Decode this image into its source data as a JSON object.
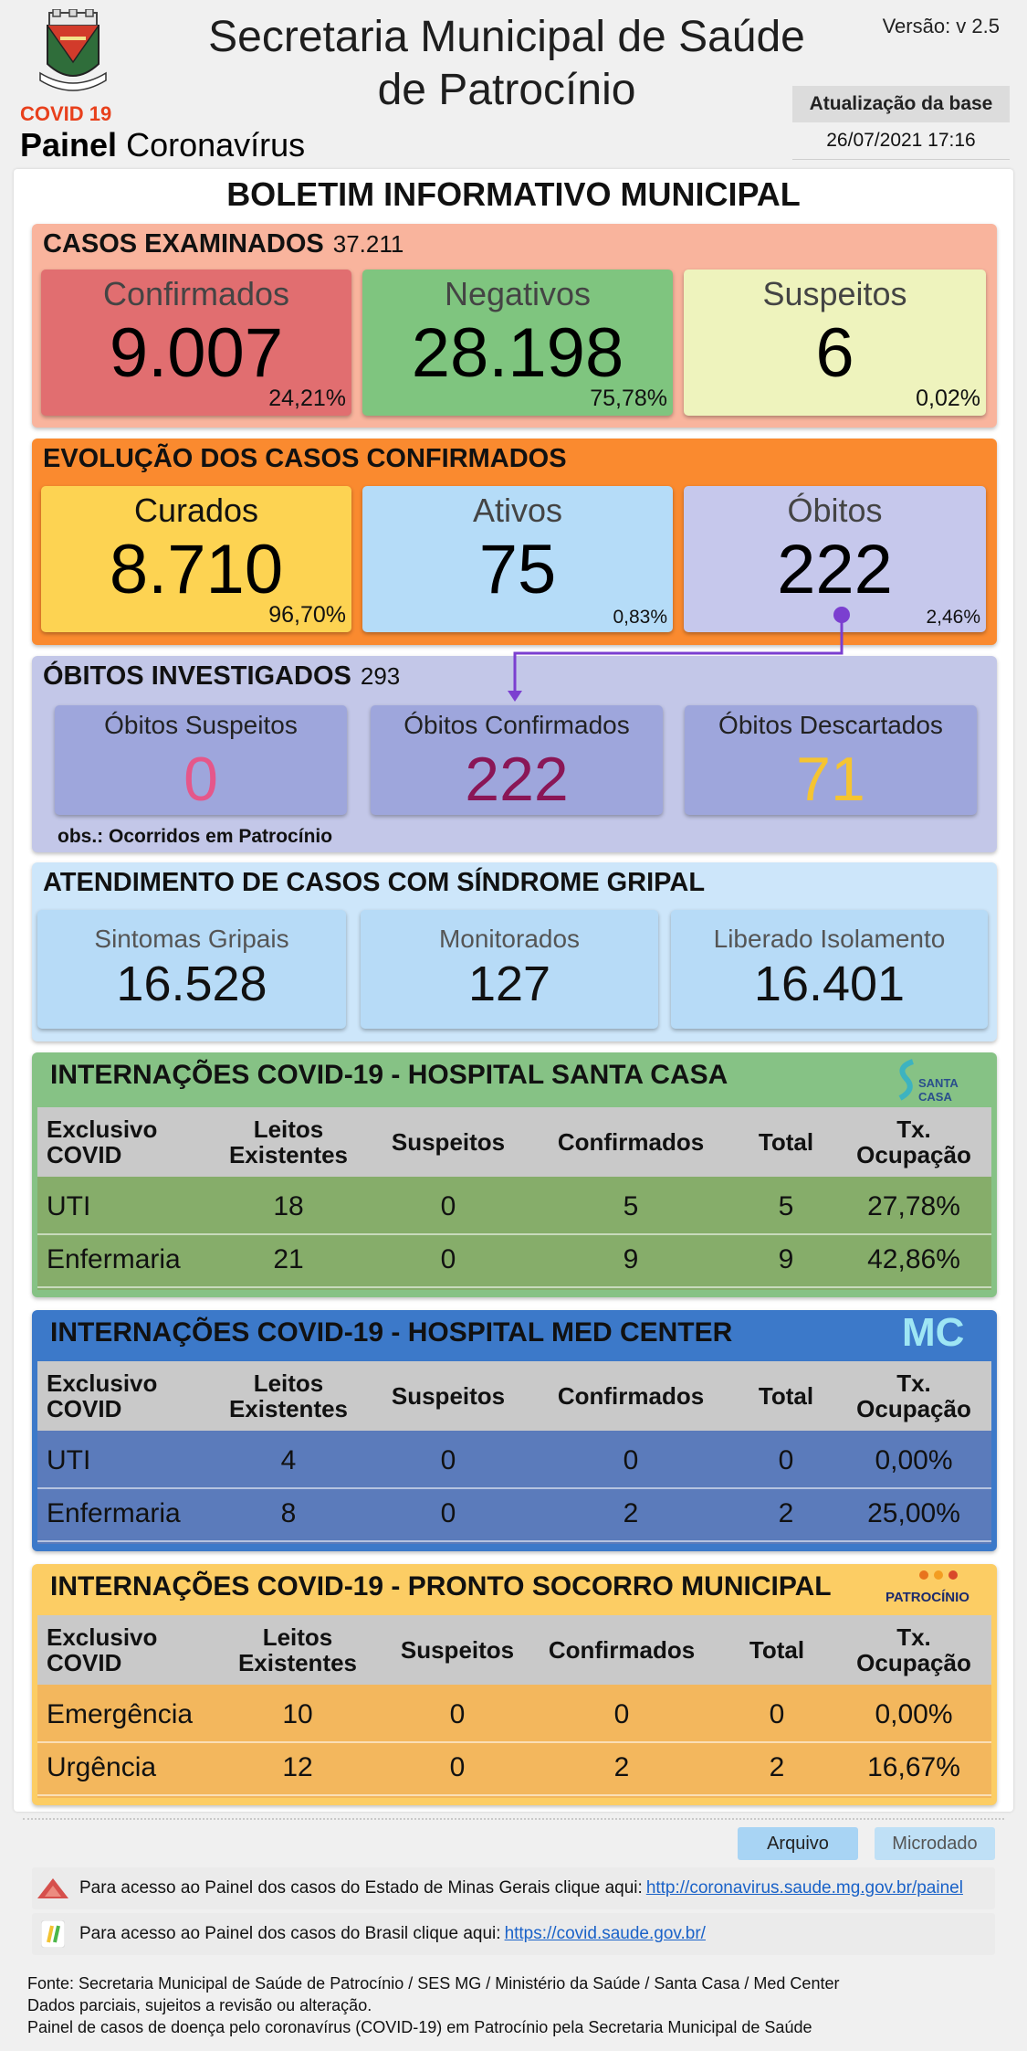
{
  "header": {
    "covid_label": "COVID 19",
    "painel_bold": "Painel",
    "painel_rest": "Coronavírus",
    "title_line1": "Secretaria Municipal de Saúde",
    "title_line2": "de Patrocínio",
    "version": "Versão: v 2.5",
    "update_label": "Atualização da base",
    "update_date": "26/07/2021 17:16",
    "crest_text": "PATROCÍNIO"
  },
  "bulletin_title": "BOLETIM INFORMATIVO MUNICIPAL",
  "casos_examinados": {
    "title": "CASOS EXAMINADOS",
    "count": "37.211",
    "tiles": [
      {
        "label": "Confirmados",
        "value": "9.007",
        "pct": "24,21%"
      },
      {
        "label": "Negativos",
        "value": "28.198",
        "pct": "75,78%"
      },
      {
        "label": "Suspeitos",
        "value": "6",
        "pct": "0,02%"
      }
    ]
  },
  "evolucao": {
    "title": "EVOLUÇÃO DOS CASOS CONFIRMADOS",
    "tiles": [
      {
        "label": "Curados",
        "value": "8.710",
        "pct": "96,70%"
      },
      {
        "label": "Ativos",
        "value": "75",
        "pct": "0,83%"
      },
      {
        "label": "Óbitos",
        "value": "222",
        "pct": "2,46%"
      }
    ]
  },
  "obitos_investigados": {
    "title": "ÓBITOS INVESTIGADOS",
    "count": "293",
    "tiles": [
      {
        "label": "Óbitos Suspeitos",
        "value": "0"
      },
      {
        "label": "Óbitos Confirmados",
        "value": "222"
      },
      {
        "label": "Óbitos Descartados",
        "value": "71"
      }
    ],
    "obs": "obs.: Ocorridos em Patrocínio"
  },
  "sindrome_gripal": {
    "title": "ATENDIMENTO DE CASOS COM SÍNDROME GRIPAL",
    "tiles": [
      {
        "label": "Sintomas Gripais",
        "value": "16.528"
      },
      {
        "label": "Monitorados",
        "value": "127"
      },
      {
        "label": "Liberado Isolamento",
        "value": "16.401"
      }
    ]
  },
  "table_headers": {
    "col1a": "Exclusivo",
    "col1b": "COVID",
    "col2a": "Leitos",
    "col2b": "Existentes",
    "col3": "Suspeitos",
    "col4": "Confirmados",
    "col5": "Total",
    "col6a": "Tx.",
    "col6b": "Ocupação"
  },
  "santa_casa": {
    "title": "INTERNAÇÕES COVID-19 - HOSPITAL SANTA CASA",
    "logo_text": "SANTA CASA",
    "rows": [
      {
        "name": "UTI",
        "leitos": "18",
        "suspeitos": "0",
        "confirmados": "5",
        "total": "5",
        "tx": "27,78%"
      },
      {
        "name": "Enfermaria",
        "leitos": "21",
        "suspeitos": "0",
        "confirmados": "9",
        "total": "9",
        "tx": "42,86%"
      }
    ]
  },
  "med_center": {
    "title": "INTERNAÇÕES COVID-19 - HOSPITAL MED CENTER",
    "logo_text": "MC",
    "rows": [
      {
        "name": "UTI",
        "leitos": "4",
        "suspeitos": "0",
        "confirmados": "0",
        "total": "0",
        "tx": "0,00%"
      },
      {
        "name": "Enfermaria",
        "leitos": "8",
        "suspeitos": "0",
        "confirmados": "2",
        "total": "2",
        "tx": "25,00%"
      }
    ]
  },
  "pronto_socorro": {
    "title": "INTERNAÇÕES COVID-19 - PRONTO SOCORRO MUNICIPAL",
    "logo_text": "PATROCÍNIO",
    "rows": [
      {
        "name": "Emergência",
        "leitos": "10",
        "suspeitos": "0",
        "confirmados": "0",
        "total": "0",
        "tx": "0,00%"
      },
      {
        "name": "Urgência",
        "leitos": "12",
        "suspeitos": "0",
        "confirmados": "2",
        "total": "2",
        "tx": "16,67%"
      }
    ]
  },
  "buttons": {
    "arquivo": "Arquivo",
    "microdado": "Microdado"
  },
  "links": {
    "mg_text": "Para acesso ao Painel dos casos do Estado de Minas Gerais clique aqui:",
    "mg_url": "http://coronavirus.saude.mg.gov.br/painel",
    "br_text": "Para acesso ao Painel dos casos do Brasil clique aqui:",
    "br_url": "https://covid.saude.gov.br/"
  },
  "footer": {
    "line1": "Fonte: Secretaria Municipal de Saúde de Patrocínio / SES MG / Ministério da Saúde / Santa Casa / Med Center",
    "line2": "Dados parciais, sujeitos a revisão ou alteração.",
    "line3": "Painel de casos de doença pelo coronavírus (COVID-19) em Patrocínio pela Secretaria Municipal de Saúde"
  },
  "colors": {
    "casos_bg": "#f9b49d",
    "confirmados": "#e16e70",
    "negativos": "#7fc57f",
    "suspeitos": "#eef3bd",
    "evolucao_bg": "#fa8a2f",
    "curados": "#fdd352",
    "ativos": "#b5dcf8",
    "obitos": "#c6c8ec",
    "obitos_inv_bg": "#c3c7e8",
    "obitos_tile": "#9ea6dc",
    "gripal_bg": "#cde6fa",
    "gripal_tile": "#b7dbf7",
    "santa_casa_bg": "#86c285",
    "med_center_bg": "#3c79c9",
    "ps_bg": "#fccd64"
  }
}
